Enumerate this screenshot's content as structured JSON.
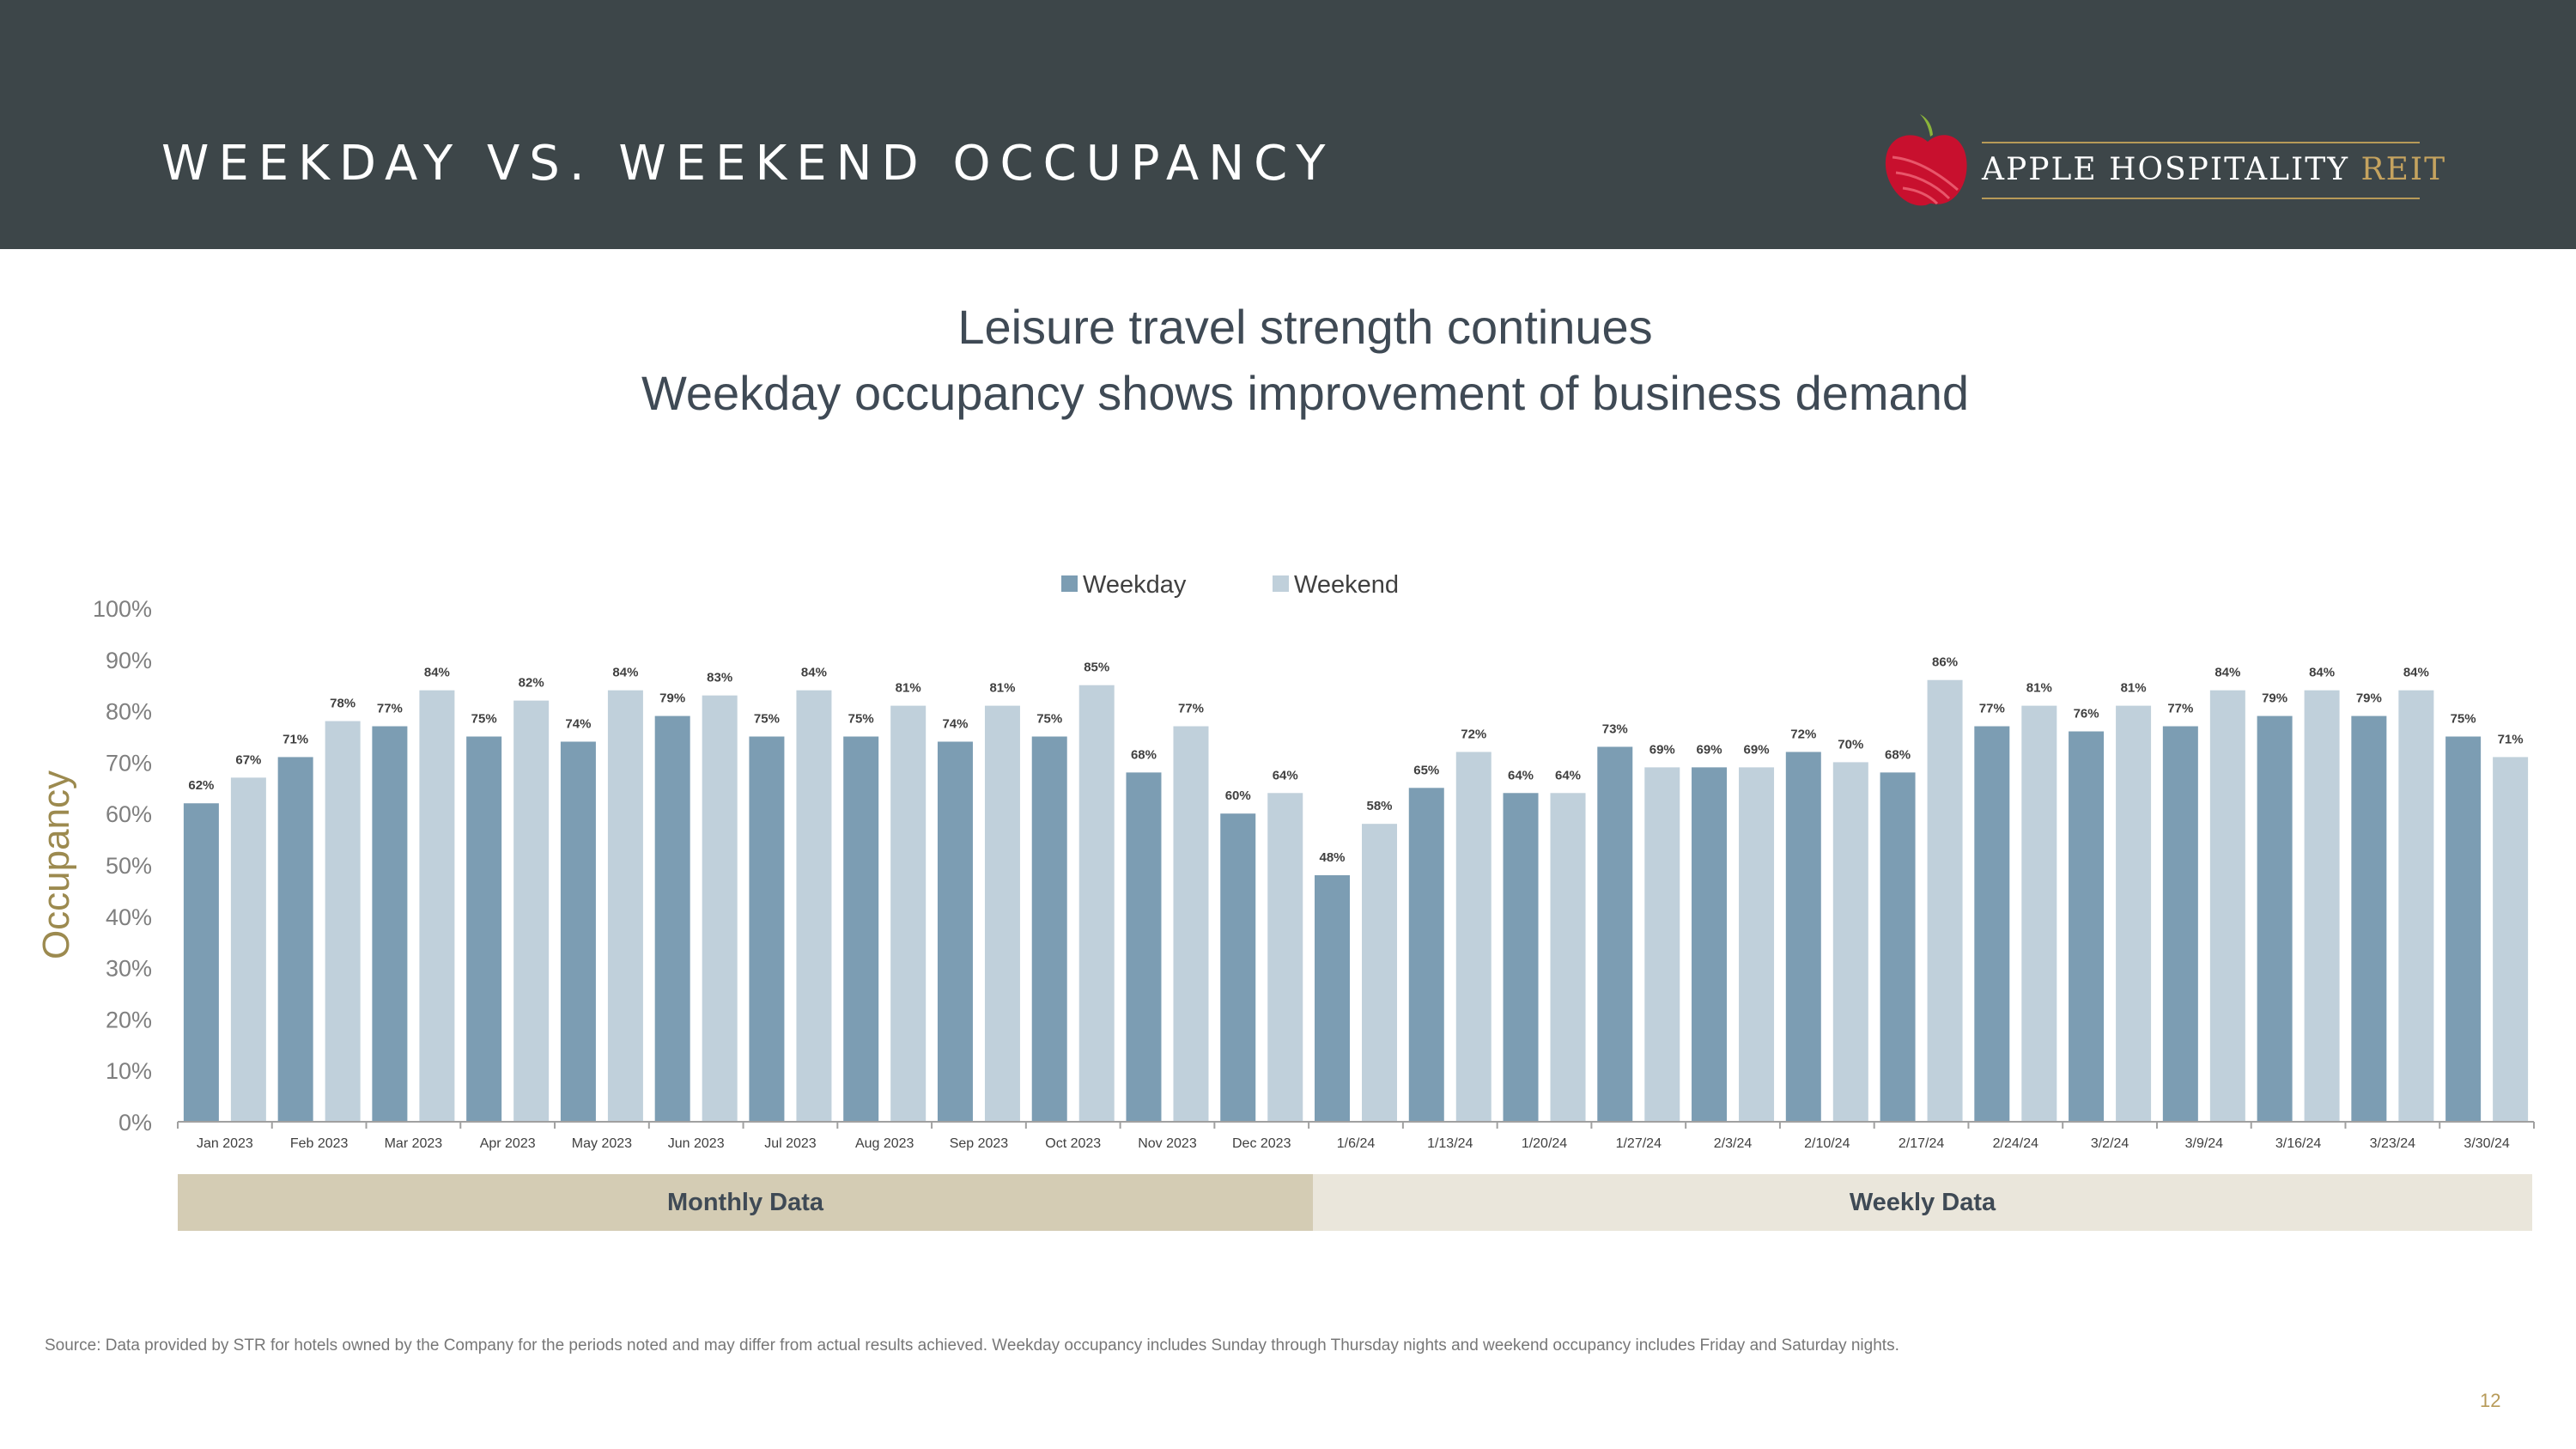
{
  "header": {
    "title": "WEEKDAY VS. WEEKEND OCCUPANCY",
    "logo_name": "APPLE HOSPITALITY",
    "logo_reit": "REIT"
  },
  "subtitle": {
    "line1": "Leisure travel strength continues",
    "line2": "Weekday occupancy shows improvement of business demand"
  },
  "bands": {
    "monthly": "Monthly Data",
    "weekly": "Weekly Data"
  },
  "footer": {
    "source": "Source:  Data provided by STR for hotels owned by the Company for the periods noted and may differ from actual results achieved. Weekday occupancy includes Sunday through Thursday nights and weekend occupancy includes Friday and Saturday nights.",
    "page_number": "12"
  },
  "colors": {
    "weekday": "#7c9db3",
    "weekend": "#c0d0db",
    "ylabel": "#9c8a4f",
    "axis_text": "#7f7f7f"
  },
  "chart_data": {
    "type": "bar",
    "title": "",
    "xlabel": "",
    "ylabel": "Occupancy",
    "ylim": [
      0,
      100
    ],
    "yticks": [
      "0%",
      "10%",
      "20%",
      "30%",
      "40%",
      "50%",
      "60%",
      "70%",
      "80%",
      "90%",
      "100%"
    ],
    "legend_position": "top-center",
    "grid": false,
    "categories": [
      "Jan 2023",
      "Feb 2023",
      "Mar 2023",
      "Apr 2023",
      "May 2023",
      "Jun 2023",
      "Jul 2023",
      "Aug 2023",
      "Sep 2023",
      "Oct 2023",
      "Nov 2023",
      "Dec 2023",
      "1/6/24",
      "1/13/24",
      "1/20/24",
      "1/27/24",
      "2/3/24",
      "2/10/24",
      "2/17/24",
      "2/24/24",
      "3/2/24",
      "3/9/24",
      "3/16/24",
      "3/23/24",
      "3/30/24"
    ],
    "series": [
      {
        "name": "Weekday",
        "values": [
          62,
          71,
          77,
          75,
          74,
          79,
          75,
          75,
          74,
          75,
          68,
          60,
          48,
          65,
          64,
          73,
          69,
          72,
          68,
          77,
          76,
          77,
          79,
          79,
          75
        ]
      },
      {
        "name": "Weekend",
        "values": [
          67,
          78,
          84,
          82,
          84,
          83,
          84,
          81,
          81,
          85,
          77,
          64,
          58,
          72,
          64,
          69,
          69,
          70,
          86,
          81,
          81,
          84,
          84,
          84,
          71
        ]
      }
    ]
  }
}
